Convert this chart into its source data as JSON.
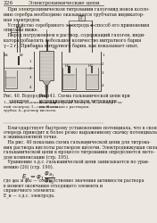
{
  "page_number": "226",
  "header_text": "Электрохимические цепи",
  "body_text_top": [
    "   При электрохимическом титровании галогенид ионов колло-",
    "нию серебра необходимо оказывается трубчатая индикатор-",
    "ная электродов.",
    "   Устройство серебряного электрода и способ его применения",
    "описаны ниже.",
    "   Перед погружением в раствор, содержащий галоген, инди-",
    "катора добавлять небольшое количество нитратного бария",
    "γ~2 г). Прибавка нитратного бария, как показывает опыт,"
  ],
  "caption_fig40": "Рис. 40. Водородный\n    электрод.",
  "caption_fig40_sub": "1—штатив; 2—платинов. чер-\nный электрод; 3—стеклянная\nтрубка; 4—раствор кислоты.",
  "caption_fig41": "Рис. 41. Схема гальванической цепи при\nпотенциометрическом титровании.",
  "caption_fig41_sub": "А—индикаторный электрод; Б—стандарт. эл-\nды; В—стакан с раствором.",
  "body_text_bottom": [
    "   Благодарствует быстрому установлению потенциала, что в свою",
    "очередь приводит к более резко выраженному скачку потенциала",
    "в эквивалентной точке.",
    "   На рис. 40 показана схема гальванической цепи для титрова-",
    "ния раствора кислоты раствором щёлочи. Электродвижущая сила",
    "гальванической цепи в процессе титрования определяется мето-",
    "дом компенсации (стр. 195).",
    "   Уравнение э.д.с. гальванической цепи записывается по урав-",
    "нению (26) (стр. 190)."
  ],
  "formula_label": "E_н = φ_1",
  "formula_text_lines": [
    "где φa₁ и φa₂ — соответственно значения активности раствора",
    "в момент окончания отходящего элемента и",
    "справочного элемента;",
    "E_н — э.д.с. электрода."
  ],
  "bg_color": "#ede8df",
  "text_color": "#1e1a14",
  "fig_color": "#4a4540",
  "fig_light": "#a8a49e"
}
